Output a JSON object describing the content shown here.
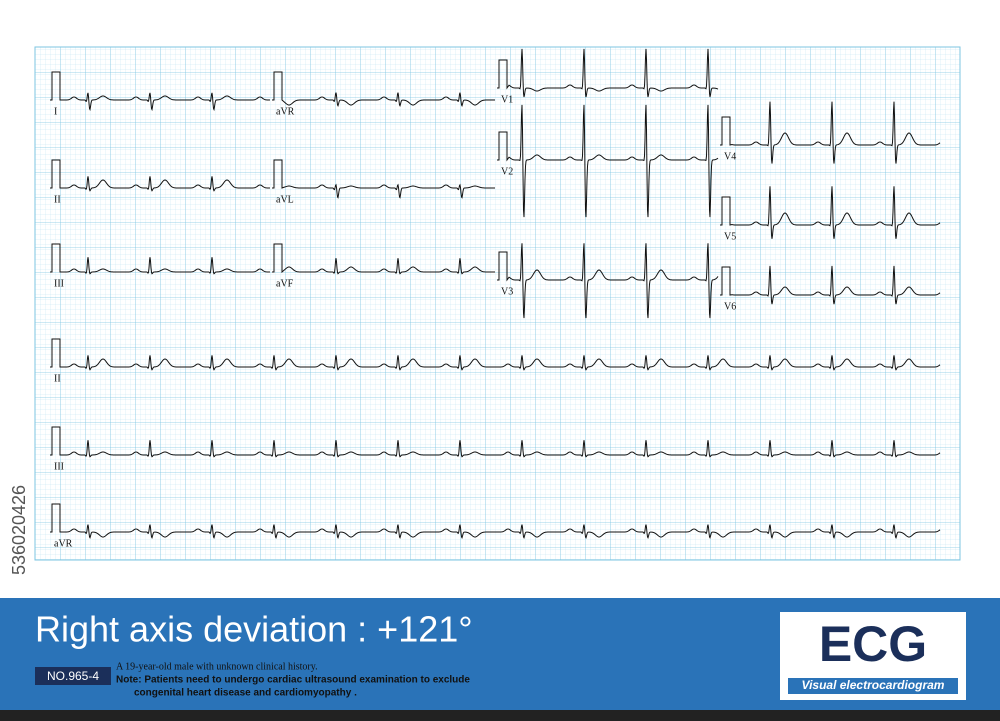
{
  "watermark": "536020426",
  "leads": [
    {
      "label": "I"
    },
    {
      "label": "aVR"
    },
    {
      "label": "V1"
    },
    {
      "label": "V4"
    },
    {
      "label": "II"
    },
    {
      "label": "aVL"
    },
    {
      "label": "V2"
    },
    {
      "label": "V5"
    },
    {
      "label": "III"
    },
    {
      "label": "aVF"
    },
    {
      "label": "V3"
    },
    {
      "label": "V6"
    },
    {
      "label": "II"
    },
    {
      "label": "III"
    },
    {
      "label": "aVR"
    }
  ],
  "banner": {
    "title": "Right axis deviation : +121°",
    "number": "NO.965-4",
    "history": "A 19-year-old male with unknown clinical history.",
    "note_lines": [
      "Note: Patients need to undergo cardiac ultrasound examination to exclude",
      "congenital heart disease and cardiomyopathy ."
    ]
  },
  "logo": {
    "name": "ECG",
    "tagline": "Visual electrocardiogram"
  }
}
